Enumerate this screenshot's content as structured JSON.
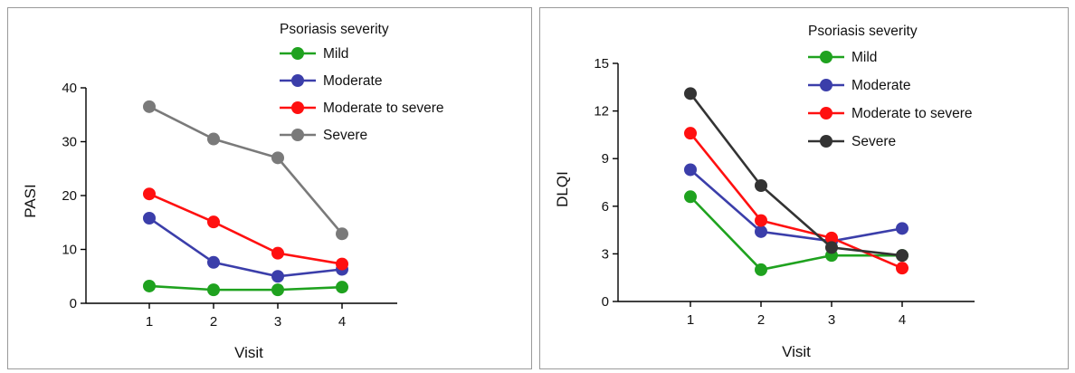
{
  "chart_data": [
    {
      "type": "line",
      "title": "",
      "xlabel": "Visit",
      "ylabel": "PASI",
      "x": [
        1,
        2,
        3,
        4
      ],
      "x_tick_labels": [
        "1",
        "2",
        "3",
        "4"
      ],
      "y_ticks": [
        0,
        10,
        20,
        30,
        40
      ],
      "ylim": [
        0,
        40
      ],
      "grid": false,
      "legend_title": "Psoriasis severity",
      "legend_position": "top-right",
      "series": [
        {
          "name": "Mild",
          "color": "#1fa21f",
          "values": [
            3.2,
            2.5,
            2.5,
            3.0
          ]
        },
        {
          "name": "Moderate",
          "color": "#3b3eaa",
          "values": [
            15.8,
            7.6,
            5.0,
            6.3
          ]
        },
        {
          "name": "Moderate to severe",
          "color": "#ff1010",
          "values": [
            20.3,
            15.1,
            9.3,
            7.3
          ]
        },
        {
          "name": "Severe",
          "color": "#7a7a7a",
          "values": [
            36.5,
            30.5,
            27.0,
            12.9
          ]
        }
      ]
    },
    {
      "type": "line",
      "title": "",
      "xlabel": "Visit",
      "ylabel": "DLQI",
      "x": [
        1,
        2,
        3,
        4
      ],
      "x_tick_labels": [
        "1",
        "2",
        "3",
        "4"
      ],
      "y_ticks": [
        0,
        3,
        6,
        9,
        12,
        15
      ],
      "ylim": [
        0,
        15
      ],
      "grid": false,
      "legend_title": "Psoriasis severity",
      "legend_position": "top-right",
      "series": [
        {
          "name": "Mild",
          "color": "#1fa21f",
          "values": [
            6.6,
            2.0,
            2.9,
            2.9
          ]
        },
        {
          "name": "Moderate",
          "color": "#3b3eaa",
          "values": [
            8.3,
            4.4,
            3.8,
            4.6
          ]
        },
        {
          "name": "Moderate to severe",
          "color": "#ff1010",
          "values": [
            10.6,
            5.1,
            4.0,
            2.1
          ]
        },
        {
          "name": "Severe",
          "color": "#333333",
          "values": [
            13.1,
            7.3,
            3.4,
            2.9
          ]
        }
      ]
    }
  ]
}
